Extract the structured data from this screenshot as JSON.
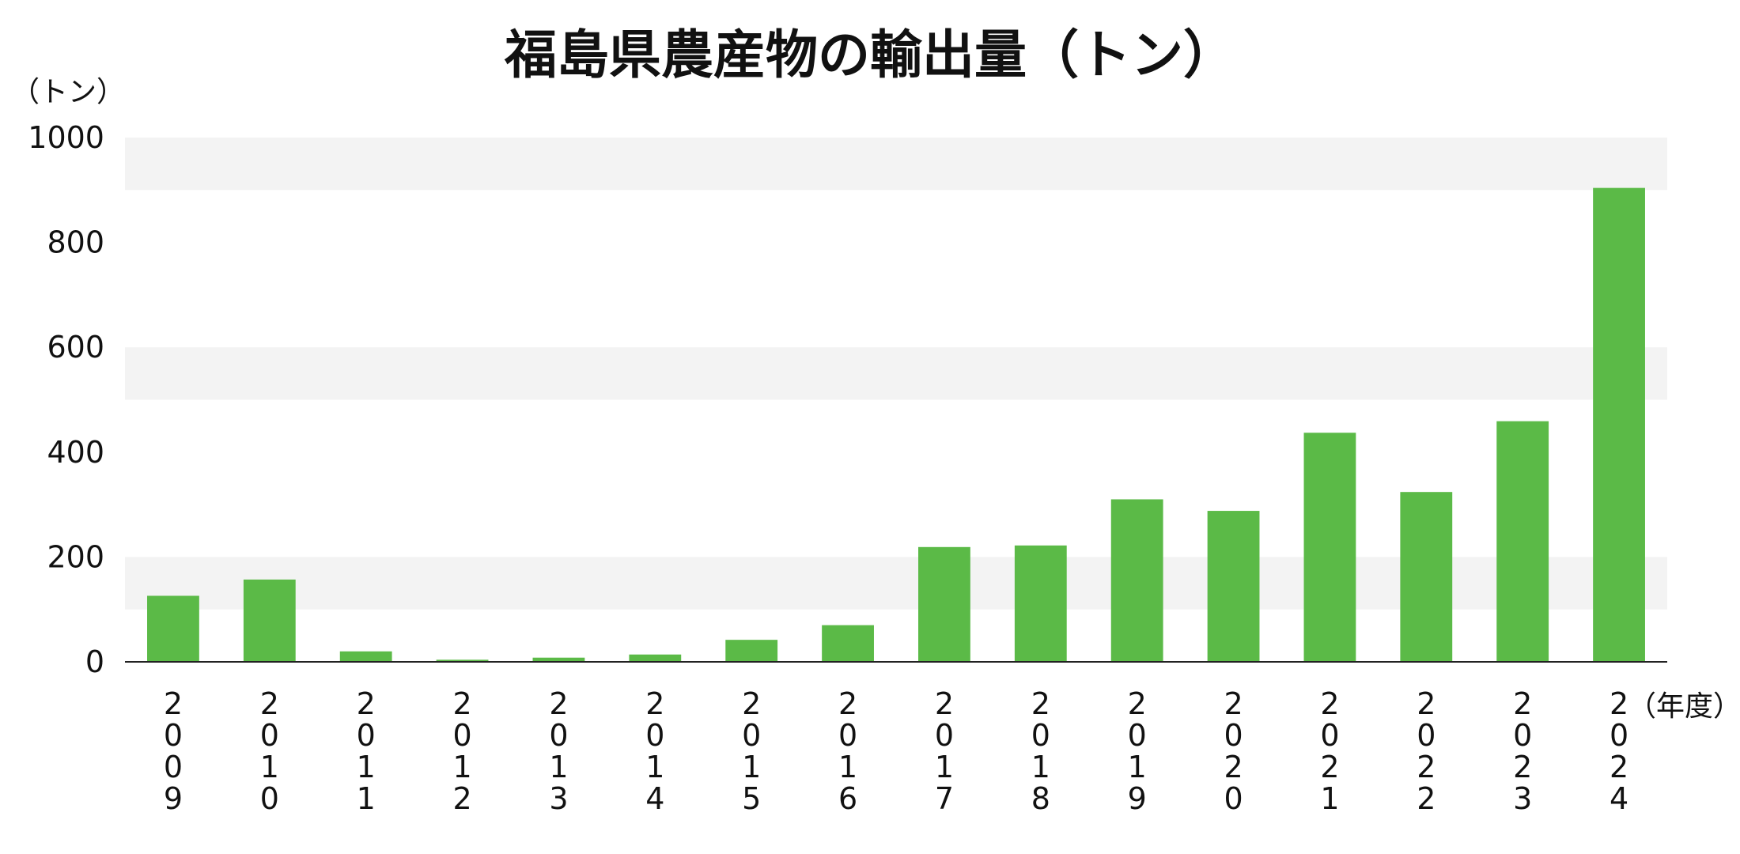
{
  "chart_data": {
    "type": "bar",
    "title": "福島県農産物の輸出量（トン）",
    "ylabel": "（トン）",
    "xlabel": "（年度）",
    "ylim": [
      0,
      1000
    ],
    "yticks": [
      0,
      200,
      400,
      600,
      800,
      1000
    ],
    "grid": "alternating horizontal bands",
    "categories": [
      "2009",
      "2010",
      "2011",
      "2012",
      "2013",
      "2014",
      "2015",
      "2016",
      "2017",
      "2018",
      "2019",
      "2020",
      "2021",
      "2022",
      "2023",
      "2024"
    ],
    "values": [
      126,
      157,
      20,
      4,
      8,
      14,
      42,
      70,
      219,
      222,
      310,
      288,
      437,
      324,
      459,
      904
    ],
    "bar_color": "#5bba47",
    "band_color": "#f3f3f3",
    "axis_color": "#222222"
  }
}
